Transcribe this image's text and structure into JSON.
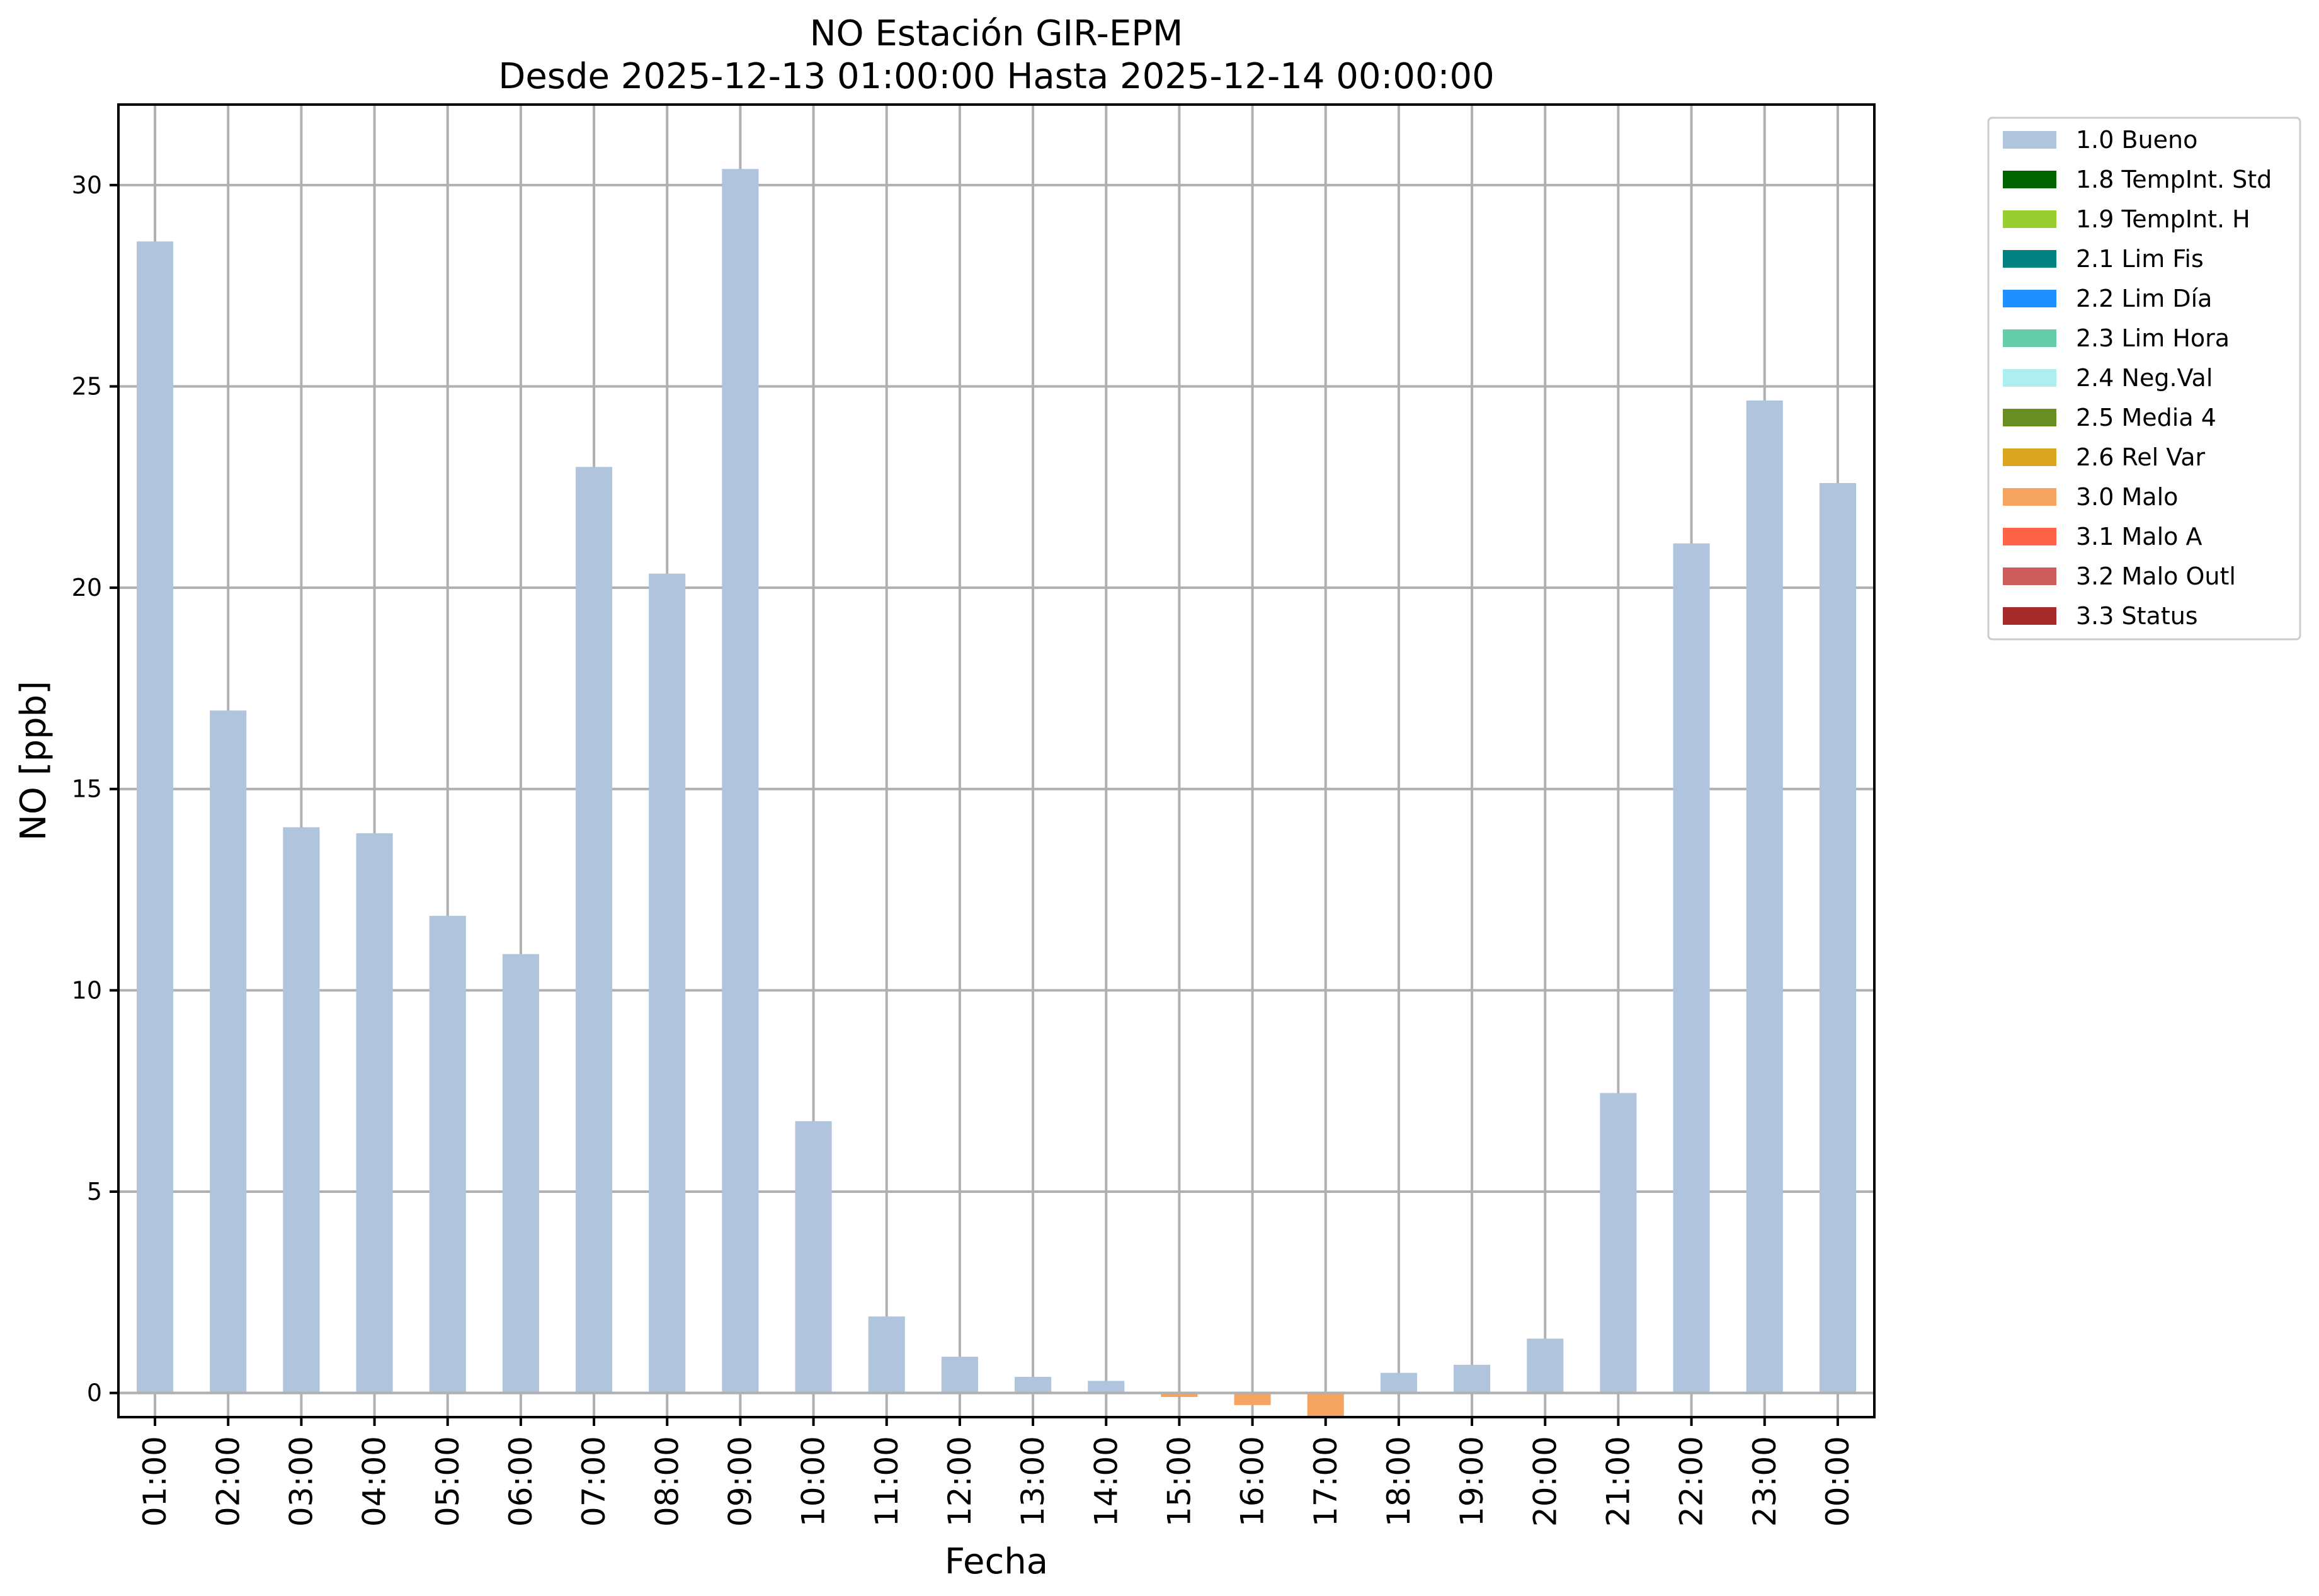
{
  "chart_data": {
    "type": "bar",
    "title": "NO Estación GIR-EPM",
    "subtitle": "Desde 2025-12-13 01:00:00 Hasta 2025-12-14 00:00:00",
    "xlabel": "Fecha",
    "ylabel": "NO [ppb]",
    "ylim": [
      -0.6,
      32
    ],
    "yticks": [
      0,
      5,
      10,
      15,
      20,
      25,
      30
    ],
    "grid": true,
    "legend_position": "outside-top-right",
    "categories": [
      "01:00",
      "02:00",
      "03:00",
      "04:00",
      "05:00",
      "06:00",
      "07:00",
      "08:00",
      "09:00",
      "10:00",
      "11:00",
      "12:00",
      "13:00",
      "14:00",
      "15:00",
      "16:00",
      "17:00",
      "18:00",
      "19:00",
      "20:00",
      "21:00",
      "22:00",
      "23:00",
      "00:00"
    ],
    "values": [
      28.6,
      16.95,
      14.05,
      13.9,
      11.85,
      10.9,
      23.0,
      20.35,
      30.4,
      6.75,
      1.9,
      0.9,
      0.4,
      0.3,
      -0.1,
      -0.3,
      -0.6,
      0.5,
      0.7,
      1.35,
      7.45,
      21.1,
      24.65,
      22.6
    ],
    "flags": [
      "1.0 Bueno",
      "1.0 Bueno",
      "1.0 Bueno",
      "1.0 Bueno",
      "1.0 Bueno",
      "1.0 Bueno",
      "1.0 Bueno",
      "1.0 Bueno",
      "1.0 Bueno",
      "1.0 Bueno",
      "1.0 Bueno",
      "1.0 Bueno",
      "1.0 Bueno",
      "1.0 Bueno",
      "3.0 Malo",
      "3.0 Malo",
      "3.0 Malo",
      "1.0 Bueno",
      "1.0 Bueno",
      "1.0 Bueno",
      "1.0 Bueno",
      "1.0 Bueno",
      "1.0 Bueno",
      "1.0 Bueno"
    ],
    "legend": [
      {
        "label": "1.0 Bueno",
        "color": "#b0c4de"
      },
      {
        "label": "1.8 TempInt. Std",
        "color": "#006400"
      },
      {
        "label": "1.9 TempInt. H",
        "color": "#9acd32"
      },
      {
        "label": "2.1 Lim Fis",
        "color": "#008080"
      },
      {
        "label": "2.2 Lim Día",
        "color": "#1e90ff"
      },
      {
        "label": "2.3 Lim Hora",
        "color": "#66cdaa"
      },
      {
        "label": "2.4 Neg.Val",
        "color": "#afeeee"
      },
      {
        "label": "2.5 Media 4",
        "color": "#6b8e23"
      },
      {
        "label": "2.6 Rel Var",
        "color": "#daa520"
      },
      {
        "label": "3.0 Malo",
        "color": "#f4a460"
      },
      {
        "label": "3.1 Malo A",
        "color": "#ff6347"
      },
      {
        "label": "3.2 Malo Outl",
        "color": "#cd5c5c"
      },
      {
        "label": "3.3 Status",
        "color": "#a52a2a"
      }
    ]
  }
}
